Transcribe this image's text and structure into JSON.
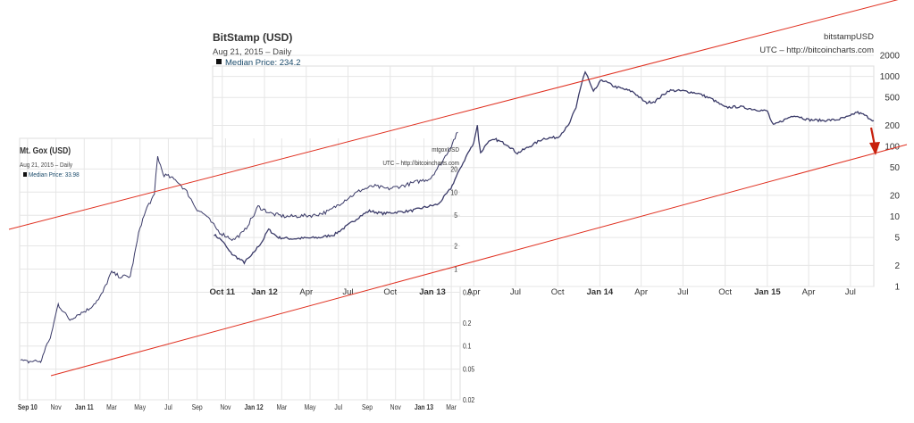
{
  "chart_data": [
    {
      "type": "line",
      "title": "BitStamp (USD)",
      "subtitle": "Aug 21, 2015 – Daily",
      "legend": {
        "label": "Median Price: 234.2",
        "placement": "top-left"
      },
      "watermark": {
        "line1": "bitstampUSD",
        "line2": "UTC – http://bitcoincharts.com"
      },
      "yscale": "log",
      "ylim": [
        1,
        2000
      ],
      "y_ticks": [
        "2000",
        "1000",
        "500",
        "200",
        "100",
        "50",
        "20",
        "10",
        "5",
        "2",
        "1"
      ],
      "x_ticks": [
        "Oct 11",
        "Jan 12",
        "Apr",
        "Jul",
        "Oct",
        "Jan 13",
        "Apr",
        "Jul",
        "Oct",
        "Jan 14",
        "Apr",
        "Jul",
        "Oct",
        "Jan 15",
        "Apr",
        "Jul"
      ],
      "x_ticks_bold": [
        true,
        true,
        false,
        false,
        false,
        true,
        false,
        false,
        false,
        true,
        false,
        false,
        false,
        true,
        false,
        false
      ],
      "xlim": [
        "2011-09-10",
        "2015-08-21"
      ],
      "series": [
        {
          "x": [
            "2011-09-13",
            "2011-10-01",
            "2011-10-20",
            "2011-11-18",
            "2011-12-05",
            "2011-12-28",
            "2012-01-10",
            "2012-02-01",
            "2012-03-01",
            "2012-04-01",
            "2012-05-01",
            "2012-06-01",
            "2012-07-01",
            "2012-08-01",
            "2012-08-17",
            "2012-09-15",
            "2012-10-15",
            "2012-11-15",
            "2012-12-15",
            "2013-01-15",
            "2013-02-10",
            "2013-03-01",
            "2013-03-15",
            "2013-04-01",
            "2013-04-09",
            "2013-04-16",
            "2013-05-01",
            "2013-05-20",
            "2013-06-15",
            "2013-07-05",
            "2013-08-01",
            "2013-09-01",
            "2013-10-01",
            "2013-10-25",
            "2013-11-10",
            "2013-11-20",
            "2013-11-30",
            "2013-12-05",
            "2013-12-18",
            "2014-01-05",
            "2014-02-01",
            "2014-02-25",
            "2014-03-15",
            "2014-04-11",
            "2014-05-01",
            "2014-06-01",
            "2014-07-01",
            "2014-08-01",
            "2014-09-01",
            "2014-10-01",
            "2014-11-01",
            "2014-12-01",
            "2015-01-01",
            "2015-01-14",
            "2015-02-01",
            "2015-03-01",
            "2015-04-01",
            "2015-05-01",
            "2015-06-01",
            "2015-07-01",
            "2015-07-15",
            "2015-08-01",
            "2015-08-21"
          ],
          "y": [
            5.5,
            4.5,
            3.0,
            2.2,
            2.8,
            4.5,
            6.5,
            5.0,
            4.8,
            4.9,
            5.0,
            5.5,
            7.5,
            10.5,
            12,
            11,
            11.5,
            12,
            13.5,
            15,
            25,
            45,
            70,
            110,
            200,
            80,
            115,
            125,
            105,
            80,
            100,
            130,
            135,
            200,
            350,
            700,
            1150,
            1000,
            600,
            900,
            720,
            650,
            600,
            420,
            440,
            630,
            620,
            580,
            480,
            360,
            370,
            340,
            320,
            200,
            230,
            280,
            240,
            235,
            240,
            270,
            310,
            280,
            234
          ]
        }
      ]
    },
    {
      "type": "line",
      "title": "Mt. Gox (USD)",
      "subtitle": "Aug 21, 2015 – Daily",
      "legend": {
        "label": "Median Price: 33.98",
        "placement": "top-left"
      },
      "watermark": {
        "line1": "mtgoxUSD",
        "line2": "UTC – http://bitcoincharts.com"
      },
      "yscale": "log",
      "ylim": [
        0.02,
        50
      ],
      "y_ticks_lower": [
        "0.5",
        "0.2",
        "0.1",
        "0.05",
        "0.02"
      ],
      "y_ticks_upper": [
        "20",
        "10",
        "5",
        "2",
        "1"
      ],
      "x_ticks": [
        "Sep 10",
        "Nov",
        "Jan 11",
        "Mar",
        "May",
        "Jul",
        "Sep",
        "Nov",
        "Jan 12",
        "Mar",
        "May",
        "Jul",
        "Sep",
        "Nov",
        "Jan 13",
        "Mar"
      ],
      "x_ticks_bold": [
        true,
        false,
        true,
        false,
        false,
        false,
        false,
        false,
        true,
        false,
        false,
        false,
        false,
        false,
        true,
        false
      ],
      "xlim": [
        "2010-08-15",
        "2013-03-20"
      ],
      "series": [
        {
          "x": [
            "2010-08-17",
            "2010-09-01",
            "2010-09-15",
            "2010-09-28",
            "2010-10-01",
            "2010-10-10",
            "2010-10-20",
            "2010-11-06",
            "2010-11-20",
            "2010-12-01",
            "2010-12-20",
            "2011-01-10",
            "2011-02-01",
            "2011-02-10",
            "2011-03-01",
            "2011-03-20",
            "2011-04-10",
            "2011-05-01",
            "2011-05-20",
            "2011-06-01",
            "2011-06-08",
            "2011-06-20",
            "2011-07-01",
            "2011-07-20",
            "2011-08-10",
            "2011-09-01",
            "2011-09-20",
            "2011-10-10",
            "2011-10-20",
            "2011-11-18",
            "2011-12-10",
            "2012-01-01",
            "2012-01-10",
            "2012-02-10",
            "2012-03-10",
            "2012-04-10",
            "2012-05-10",
            "2012-06-10",
            "2012-07-10",
            "2012-08-17",
            "2012-09-15",
            "2012-10-15",
            "2012-11-15",
            "2012-12-15",
            "2013-01-15",
            "2013-02-10",
            "2013-03-01",
            "2013-03-15"
          ],
          "y": [
            0.065,
            0.062,
            0.064,
            0.063,
            0.063,
            0.1,
            0.12,
            0.35,
            0.27,
            0.22,
            0.26,
            0.3,
            0.4,
            0.5,
            0.9,
            0.8,
            0.8,
            3.5,
            7,
            9,
            29,
            17,
            16,
            14,
            10,
            6,
            5,
            3.5,
            3,
            2.4,
            3.0,
            5.0,
            6.5,
            5.2,
            4.8,
            4.9,
            5.0,
            5.6,
            7.5,
            10.5,
            12,
            11,
            12,
            13.5,
            15,
            25,
            40,
            60
          ]
        }
      ]
    },
    {
      "type": "trend_channel",
      "annotation": "red-arrow-down"
    }
  ]
}
